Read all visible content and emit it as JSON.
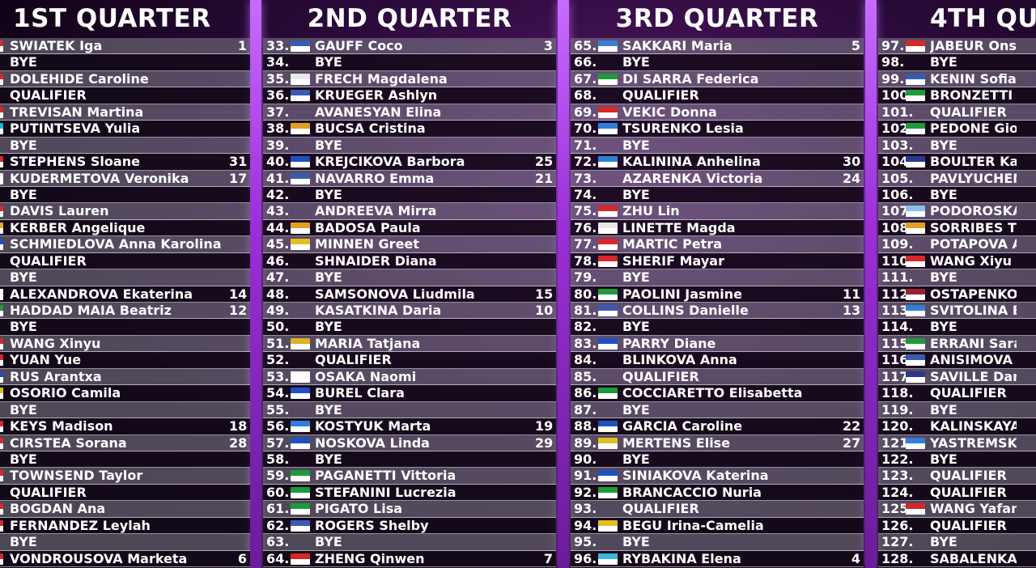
{
  "quarters": [
    {
      "title": "1ST QUARTER",
      "rows": [
        {
          "num": "",
          "flag": "#d62828",
          "name": "SWIATEK Iga",
          "seed": "1"
        },
        {
          "num": "",
          "flag": "",
          "name": "BYE",
          "seed": ""
        },
        {
          "num": "",
          "flag": "#d62828",
          "name": "DOLEHIDE Caroline",
          "seed": ""
        },
        {
          "num": "",
          "flag": "",
          "name": "QUALIFIER",
          "seed": ""
        },
        {
          "num": "",
          "flag": "#d62828",
          "name": "TREVISAN Martina",
          "seed": ""
        },
        {
          "num": "",
          "flag": "#1fb5d6",
          "name": "PUTINTSEVA Yulia",
          "seed": ""
        },
        {
          "num": "",
          "flag": "",
          "name": "BYE",
          "seed": ""
        },
        {
          "num": "",
          "flag": "#d62828",
          "name": "STEPHENS Sloane",
          "seed": "31"
        },
        {
          "num": "",
          "flag": "#ffffff",
          "name": "KUDERMETOVA Veronika",
          "seed": "17"
        },
        {
          "num": "",
          "flag": "",
          "name": "BYE",
          "seed": ""
        },
        {
          "num": "",
          "flag": "#d62828",
          "name": "DAVIS Lauren",
          "seed": ""
        },
        {
          "num": "",
          "flag": "#e0b020",
          "name": "KERBER Angelique",
          "seed": ""
        },
        {
          "num": "",
          "flag": "#2050c0",
          "name": "SCHMIEDLOVA Anna Karolina",
          "seed": ""
        },
        {
          "num": "",
          "flag": "",
          "name": "QUALIFIER",
          "seed": ""
        },
        {
          "num": "",
          "flag": "",
          "name": "BYE",
          "seed": ""
        },
        {
          "num": "",
          "flag": "#ffffff",
          "name": "ALEXANDROVA Ekaterina",
          "seed": "14"
        },
        {
          "num": "",
          "flag": "#1f9a3a",
          "name": "HADDAD MAIA Beatriz",
          "seed": "12"
        },
        {
          "num": "",
          "flag": "",
          "name": "BYE",
          "seed": ""
        },
        {
          "num": "",
          "flag": "#d62828",
          "name": "WANG Xinyu",
          "seed": ""
        },
        {
          "num": "",
          "flag": "#d62828",
          "name": "YUAN Yue",
          "seed": ""
        },
        {
          "num": "",
          "flag": "#2050c0",
          "name": "RUS Arantxa",
          "seed": ""
        },
        {
          "num": "",
          "flag": "#e0c020",
          "name": "OSORIO Camila",
          "seed": ""
        },
        {
          "num": "",
          "flag": "",
          "name": "BYE",
          "seed": ""
        },
        {
          "num": "",
          "flag": "#d62828",
          "name": "KEYS Madison",
          "seed": "18"
        },
        {
          "num": "",
          "flag": "#d62828",
          "name": "CIRSTEA Sorana",
          "seed": "28"
        },
        {
          "num": "",
          "flag": "",
          "name": "BYE",
          "seed": ""
        },
        {
          "num": "",
          "flag": "#d62828",
          "name": "TOWNSEND Taylor",
          "seed": ""
        },
        {
          "num": "",
          "flag": "",
          "name": "QUALIFIER",
          "seed": ""
        },
        {
          "num": "",
          "flag": "#d62828",
          "name": "BOGDAN Ana",
          "seed": ""
        },
        {
          "num": "",
          "flag": "#d62828",
          "name": "FERNANDEZ Leylah",
          "seed": ""
        },
        {
          "num": "",
          "flag": "",
          "name": "BYE",
          "seed": ""
        },
        {
          "num": "",
          "flag": "#d62828",
          "name": "VONDROUSOVA Marketa",
          "seed": "6"
        }
      ]
    },
    {
      "title": "2ND QUARTER",
      "rows": [
        {
          "num": "33.",
          "flag": "#3a5bb0",
          "name": "GAUFF Coco",
          "seed": "3"
        },
        {
          "num": "34.",
          "flag": "",
          "name": "BYE",
          "seed": ""
        },
        {
          "num": "35.",
          "flag": "#e8e8e8",
          "name": "FRECH Magdalena",
          "seed": ""
        },
        {
          "num": "36.",
          "flag": "#3a5bb0",
          "name": "KRUEGER Ashlyn",
          "seed": ""
        },
        {
          "num": "37.",
          "flag": "",
          "name": "AVANESYAN Elina",
          "seed": ""
        },
        {
          "num": "38.",
          "flag": "#e0a020",
          "name": "BUCSA Cristina",
          "seed": ""
        },
        {
          "num": "39.",
          "flag": "",
          "name": "BYE",
          "seed": ""
        },
        {
          "num": "40.",
          "flag": "#2050c0",
          "name": "KREJCIKOVA Barbora",
          "seed": "25"
        },
        {
          "num": "41.",
          "flag": "#3a5bb0",
          "name": "NAVARRO Emma",
          "seed": "21"
        },
        {
          "num": "42.",
          "flag": "",
          "name": "BYE",
          "seed": ""
        },
        {
          "num": "43.",
          "flag": "",
          "name": "ANDREEVA Mirra",
          "seed": ""
        },
        {
          "num": "44.",
          "flag": "#e0a020",
          "name": "BADOSA Paula",
          "seed": ""
        },
        {
          "num": "45.",
          "flag": "#e0c020",
          "name": "MINNEN Greet",
          "seed": ""
        },
        {
          "num": "46.",
          "flag": "",
          "name": "SHNAIDER Diana",
          "seed": ""
        },
        {
          "num": "47.",
          "flag": "",
          "name": "BYE",
          "seed": ""
        },
        {
          "num": "48.",
          "flag": "",
          "name": "SAMSONOVA Liudmila",
          "seed": "15"
        },
        {
          "num": "49.",
          "flag": "",
          "name": "KASATKINA Daria",
          "seed": "10"
        },
        {
          "num": "50.",
          "flag": "",
          "name": "BYE",
          "seed": ""
        },
        {
          "num": "51.",
          "flag": "#e0b020",
          "name": "MARIA Tatjana",
          "seed": ""
        },
        {
          "num": "52.",
          "flag": "",
          "name": "QUALIFIER",
          "seed": ""
        },
        {
          "num": "53.",
          "flag": "#ffffff",
          "name": "OSAKA Naomi",
          "seed": ""
        },
        {
          "num": "54.",
          "flag": "#2050c0",
          "name": "BUREL Clara",
          "seed": ""
        },
        {
          "num": "55.",
          "flag": "",
          "name": "BYE",
          "seed": ""
        },
        {
          "num": "56.",
          "flag": "#2f7fd8",
          "name": "KOSTYUK Marta",
          "seed": "19"
        },
        {
          "num": "57.",
          "flag": "#2050c0",
          "name": "NOSKOVA Linda",
          "seed": "29"
        },
        {
          "num": "58.",
          "flag": "",
          "name": "BYE",
          "seed": ""
        },
        {
          "num": "59.",
          "flag": "#1f9a3a",
          "name": "PAGANETTI Vittoria",
          "seed": ""
        },
        {
          "num": "60.",
          "flag": "#1f9a3a",
          "name": "STEFANINI Lucrezia",
          "seed": ""
        },
        {
          "num": "61.",
          "flag": "#1f9a3a",
          "name": "PIGATO Lisa",
          "seed": ""
        },
        {
          "num": "62.",
          "flag": "#3a5bb0",
          "name": "ROGERS Shelby",
          "seed": ""
        },
        {
          "num": "63.",
          "flag": "",
          "name": "BYE",
          "seed": ""
        },
        {
          "num": "64.",
          "flag": "#d62828",
          "name": "ZHENG Qinwen",
          "seed": "7"
        }
      ]
    },
    {
      "title": "3RD QUARTER",
      "rows": [
        {
          "num": "65.",
          "flag": "#3a7fd8",
          "name": "SAKKARI Maria",
          "seed": "5"
        },
        {
          "num": "66.",
          "flag": "",
          "name": "BYE",
          "seed": ""
        },
        {
          "num": "67.",
          "flag": "#1f9a3a",
          "name": "DI SARRA Federica",
          "seed": ""
        },
        {
          "num": "68.",
          "flag": "",
          "name": "QUALIFIER",
          "seed": ""
        },
        {
          "num": "69.",
          "flag": "#d62828",
          "name": "VEKIC Donna",
          "seed": ""
        },
        {
          "num": "70.",
          "flag": "#2f7fd8",
          "name": "TSURENKO Lesia",
          "seed": ""
        },
        {
          "num": "71.",
          "flag": "",
          "name": "BYE",
          "seed": ""
        },
        {
          "num": "72.",
          "flag": "#2f7fd8",
          "name": "KALININA Anhelina",
          "seed": "30"
        },
        {
          "num": "73.",
          "flag": "",
          "name": "AZARENKA Victoria",
          "seed": "24"
        },
        {
          "num": "74.",
          "flag": "",
          "name": "BYE",
          "seed": ""
        },
        {
          "num": "75.",
          "flag": "#d62828",
          "name": "ZHU Lin",
          "seed": ""
        },
        {
          "num": "76.",
          "flag": "#e8e8e8",
          "name": "LINETTE Magda",
          "seed": ""
        },
        {
          "num": "77.",
          "flag": "#d62828",
          "name": "MARTIC Petra",
          "seed": ""
        },
        {
          "num": "78.",
          "flag": "#d62828",
          "name": "SHERIF Mayar",
          "seed": ""
        },
        {
          "num": "79.",
          "flag": "",
          "name": "BYE",
          "seed": ""
        },
        {
          "num": "80.",
          "flag": "#1f9a3a",
          "name": "PAOLINI Jasmine",
          "seed": "11"
        },
        {
          "num": "81.",
          "flag": "#3a5bb0",
          "name": "COLLINS Danielle",
          "seed": "13"
        },
        {
          "num": "82.",
          "flag": "",
          "name": "BYE",
          "seed": ""
        },
        {
          "num": "83.",
          "flag": "#2050c0",
          "name": "PARRY Diane",
          "seed": ""
        },
        {
          "num": "84.",
          "flag": "",
          "name": "BLINKOVA Anna",
          "seed": ""
        },
        {
          "num": "85.",
          "flag": "",
          "name": "QUALIFIER",
          "seed": ""
        },
        {
          "num": "86.",
          "flag": "#1f9a3a",
          "name": "COCCIARETTO Elisabetta",
          "seed": ""
        },
        {
          "num": "87.",
          "flag": "",
          "name": "BYE",
          "seed": ""
        },
        {
          "num": "88.",
          "flag": "#2050c0",
          "name": "GARCIA Caroline",
          "seed": "22"
        },
        {
          "num": "89.",
          "flag": "#e0c020",
          "name": "MERTENS Elise",
          "seed": "27"
        },
        {
          "num": "90.",
          "flag": "",
          "name": "BYE",
          "seed": ""
        },
        {
          "num": "91.",
          "flag": "#2050c0",
          "name": "SINIAKOVA Katerina",
          "seed": ""
        },
        {
          "num": "92.",
          "flag": "#1f9a3a",
          "name": "BRANCACCIO Nuria",
          "seed": ""
        },
        {
          "num": "93.",
          "flag": "",
          "name": "QUALIFIER",
          "seed": ""
        },
        {
          "num": "94.",
          "flag": "#e0c020",
          "name": "BEGU Irina-Camelia",
          "seed": ""
        },
        {
          "num": "95.",
          "flag": "",
          "name": "BYE",
          "seed": ""
        },
        {
          "num": "96.",
          "flag": "#3ab8d8",
          "name": "RYBAKINA Elena",
          "seed": "4"
        }
      ]
    },
    {
      "title": "4TH QUA",
      "rows": [
        {
          "num": "97.",
          "flag": "#d62828",
          "name": "JABEUR Ons",
          "seed": ""
        },
        {
          "num": "98.",
          "flag": "",
          "name": "BYE",
          "seed": ""
        },
        {
          "num": "99.",
          "flag": "#3a5bb0",
          "name": "KENIN Sofia",
          "seed": ""
        },
        {
          "num": "100.",
          "flag": "#1f9a3a",
          "name": "BRONZETTI Luc",
          "seed": ""
        },
        {
          "num": "101.",
          "flag": "",
          "name": "QUALIFIER",
          "seed": ""
        },
        {
          "num": "102.",
          "flag": "#1f9a3a",
          "name": "PEDONE Giorgia",
          "seed": ""
        },
        {
          "num": "103.",
          "flag": "",
          "name": "BYE",
          "seed": ""
        },
        {
          "num": "104.",
          "flag": "#2a3a8a",
          "name": "BOULTER Katie",
          "seed": ""
        },
        {
          "num": "105.",
          "flag": "",
          "name": "PAVLYUCHENK",
          "seed": ""
        },
        {
          "num": "106.",
          "flag": "",
          "name": "BYE",
          "seed": ""
        },
        {
          "num": "107.",
          "flag": "#8ac0e8",
          "name": "PODOROSKA Na",
          "seed": ""
        },
        {
          "num": "108.",
          "flag": "#e0a020",
          "name": "SORRIBES TOR",
          "seed": ""
        },
        {
          "num": "109.",
          "flag": "",
          "name": "POTAPOVA Ana",
          "seed": ""
        },
        {
          "num": "110.",
          "flag": "#d62828",
          "name": "WANG Xiyu",
          "seed": ""
        },
        {
          "num": "111.",
          "flag": "",
          "name": "BYE",
          "seed": ""
        },
        {
          "num": "112.",
          "flag": "#9a2030",
          "name": "OSTAPENKO Je",
          "seed": ""
        },
        {
          "num": "113.",
          "flag": "#2f7fd8",
          "name": "SVITOLINA Elin",
          "seed": ""
        },
        {
          "num": "114.",
          "flag": "",
          "name": "BYE",
          "seed": ""
        },
        {
          "num": "115.",
          "flag": "#1f9a3a",
          "name": "ERRANI Sara",
          "seed": ""
        },
        {
          "num": "116.",
          "flag": "#3a5bb0",
          "name": "ANISIMOVA Am",
          "seed": ""
        },
        {
          "num": "117.",
          "flag": "#2a3a8a",
          "name": "SAVILLE Daria",
          "seed": ""
        },
        {
          "num": "118.",
          "flag": "",
          "name": "QUALIFIER",
          "seed": ""
        },
        {
          "num": "119.",
          "flag": "",
          "name": "BYE",
          "seed": ""
        },
        {
          "num": "120.",
          "flag": "",
          "name": "KALINSKAYA A",
          "seed": ""
        },
        {
          "num": "121.",
          "flag": "#2f7fd8",
          "name": "YASTREMSKA",
          "seed": ""
        },
        {
          "num": "122.",
          "flag": "",
          "name": "BYE",
          "seed": ""
        },
        {
          "num": "123.",
          "flag": "",
          "name": "QUALIFIER",
          "seed": ""
        },
        {
          "num": "124.",
          "flag": "",
          "name": "QUALIFIER",
          "seed": ""
        },
        {
          "num": "125.",
          "flag": "#d62828",
          "name": "WANG Yafan",
          "seed": ""
        },
        {
          "num": "126.",
          "flag": "",
          "name": "QUALIFIER",
          "seed": ""
        },
        {
          "num": "127.",
          "flag": "",
          "name": "BYE",
          "seed": ""
        },
        {
          "num": "128.",
          "flag": "",
          "name": "SABALENKA Ar",
          "seed": ""
        }
      ]
    }
  ],
  "colors": {
    "divider": "#b04ae8",
    "row_alt": "#7f7f88",
    "row_dark": "#16091c"
  }
}
